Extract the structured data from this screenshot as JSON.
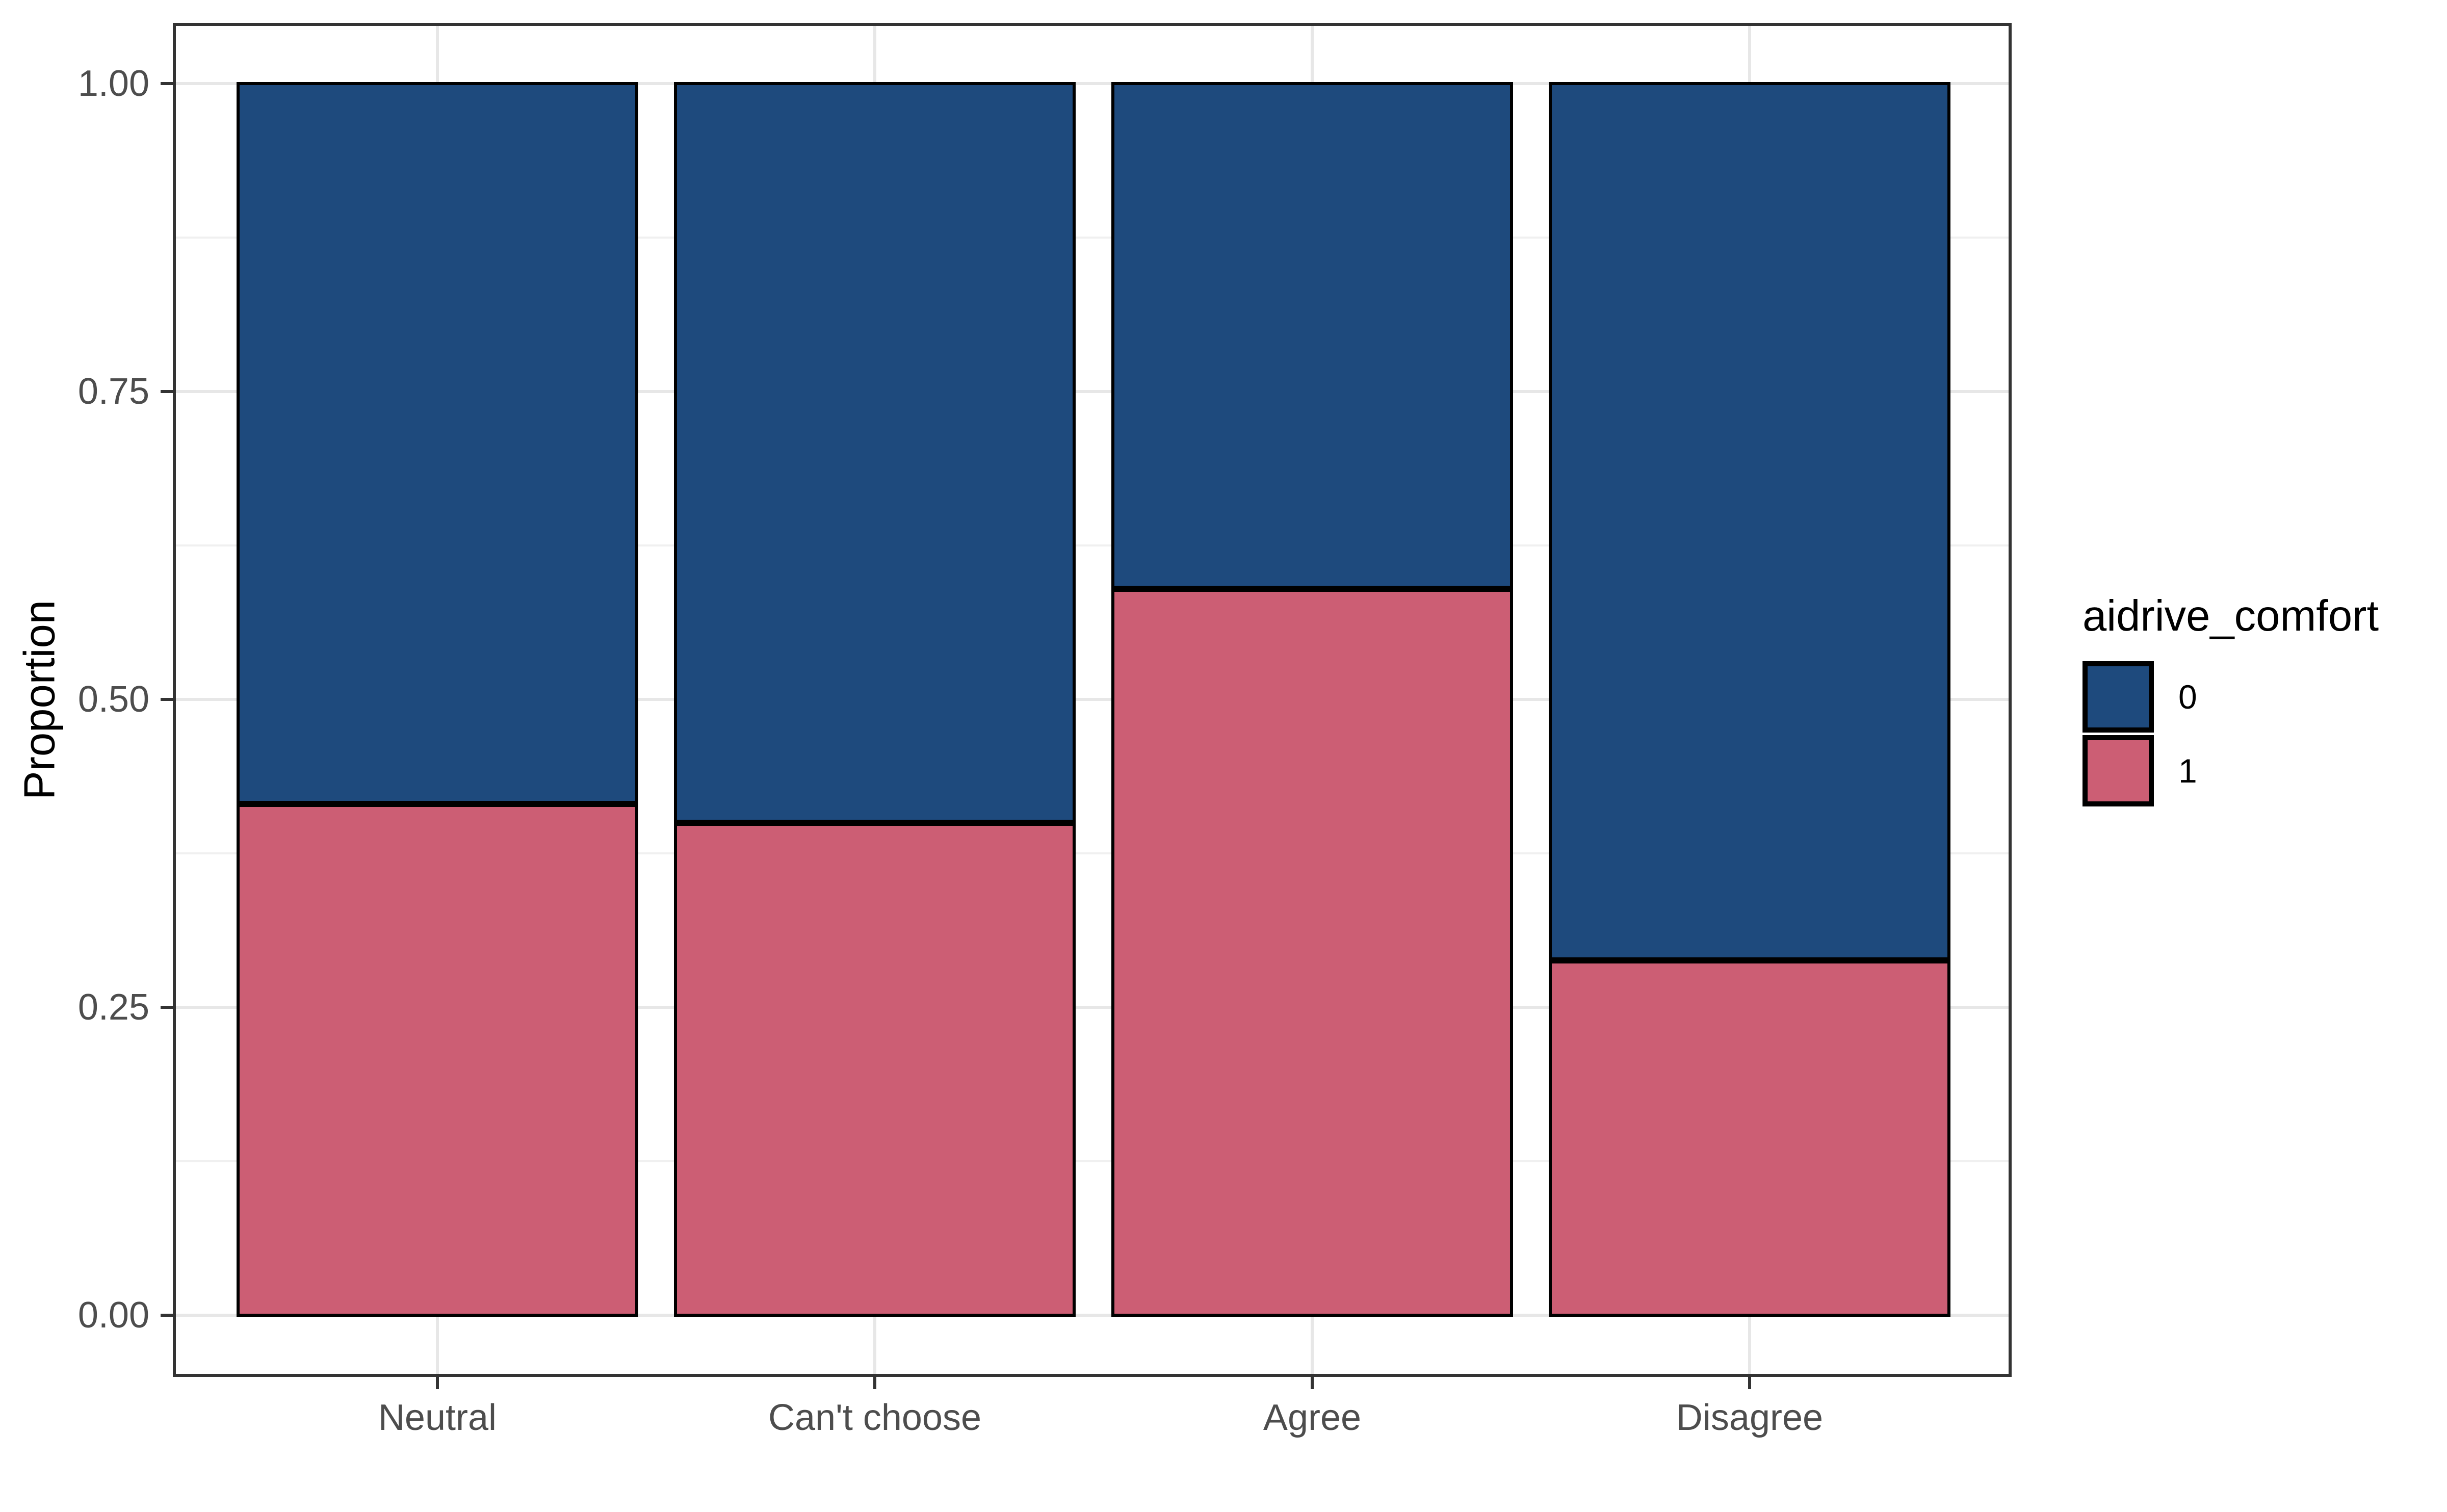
{
  "chart_data": {
    "type": "bar",
    "subtype": "stacked-proportion-100pct",
    "title": "",
    "xlabel": "",
    "ylabel": "Proportion",
    "categories": [
      "Neutral",
      "Can't choose",
      "Agree",
      "Disagree"
    ],
    "series": [
      {
        "name": "0",
        "color": "#1E4A7D",
        "values": [
          0.585,
          0.6,
          0.41,
          0.712
        ]
      },
      {
        "name": "1",
        "color": "#CC5E74",
        "values": [
          0.415,
          0.4,
          0.59,
          0.288
        ]
      }
    ],
    "stack_order_bottom_to_top": [
      "1",
      "0"
    ],
    "ylim": [
      0,
      1
    ],
    "y_ticks": {
      "labels": [
        "0.00",
        "0.25",
        "0.50",
        "0.75",
        "1.00"
      ],
      "values": [
        0,
        0.25,
        0.5,
        0.75,
        1.0
      ]
    },
    "y_minor_grid_values": [
      0.125,
      0.375,
      0.625,
      0.875
    ],
    "grid": true,
    "legend": {
      "title": "aidrive_comfort",
      "position": "right",
      "entries": [
        {
          "label": "0",
          "color": "#1E4A7D"
        },
        {
          "label": "1",
          "color": "#CC5E74"
        }
      ]
    },
    "colors": {
      "bar_stroke": "#000000",
      "panel_border": "#333333",
      "grid_major": "#E7E7E7",
      "grid_minor": "#F0F0F0",
      "tick_mark": "#333333",
      "axis_text": "#4D4D4D",
      "title_text": "#000000",
      "background": "#FFFFFF"
    }
  }
}
